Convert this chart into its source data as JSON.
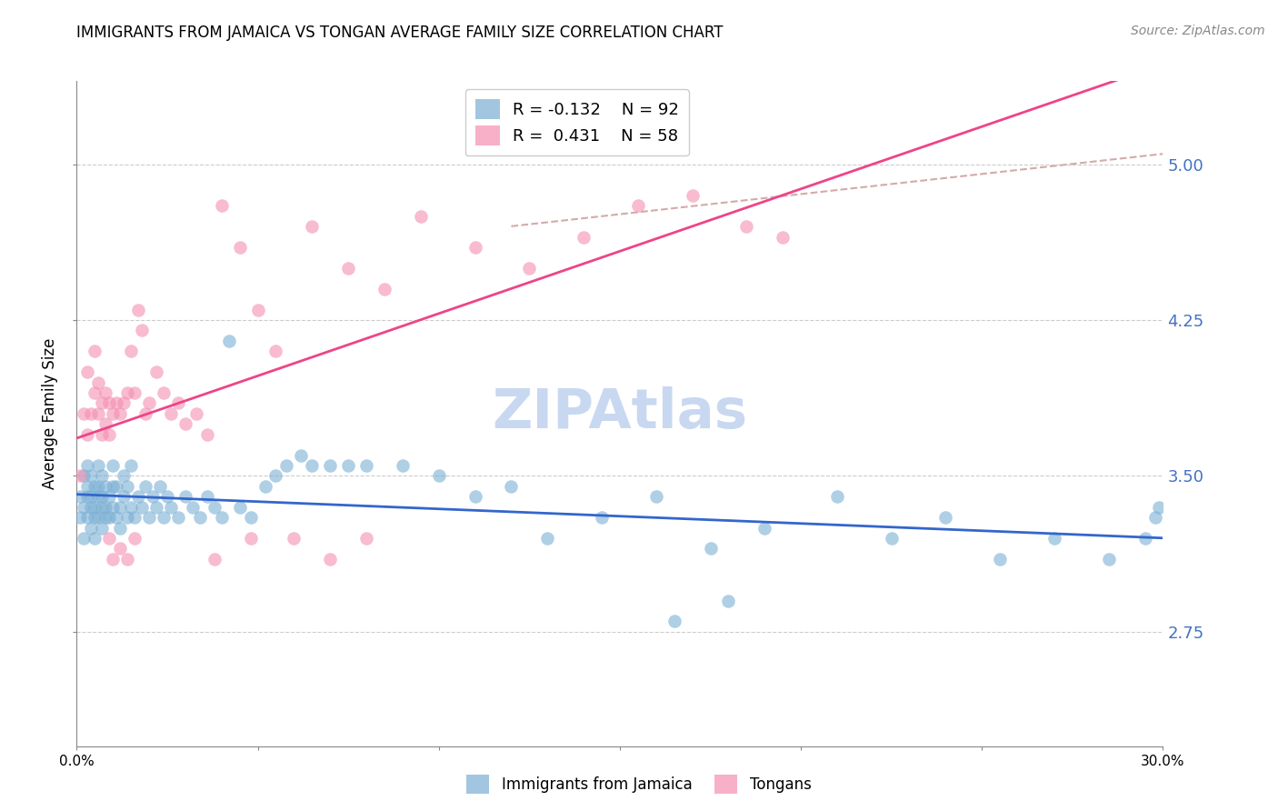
{
  "title": "IMMIGRANTS FROM JAMAICA VS TONGAN AVERAGE FAMILY SIZE CORRELATION CHART",
  "source": "Source: ZipAtlas.com",
  "ylabel": "Average Family Size",
  "xlim": [
    0.0,
    0.3
  ],
  "ylim": [
    2.2,
    5.4
  ],
  "yticks": [
    2.75,
    3.5,
    4.25,
    5.0
  ],
  "xticks": [
    0.0,
    0.05,
    0.1,
    0.15,
    0.2,
    0.25,
    0.3
  ],
  "xtick_labels": [
    "0.0%",
    "",
    "",
    "",
    "",
    "",
    "30.0%"
  ],
  "right_ytick_color": "#4472c4",
  "title_fontsize": 12,
  "source_fontsize": 10,
  "legend_R_jamaica": "-0.132",
  "legend_N_jamaica": "92",
  "legend_R_tongan": "0.431",
  "legend_N_tongan": "58",
  "color_jamaica": "#7bafd4",
  "color_tongan": "#f48fb1",
  "trendline_jamaica_color": "#3366cc",
  "trendline_tongan_color": "#ee4488",
  "trendline_dashed_color": "#d4aaaa",
  "background_color": "#ffffff",
  "watermark_text": "ZIPAtlas",
  "watermark_color": "#c8d8f0",
  "jamaica_x": [
    0.001,
    0.001,
    0.002,
    0.002,
    0.002,
    0.003,
    0.003,
    0.003,
    0.003,
    0.004,
    0.004,
    0.004,
    0.004,
    0.005,
    0.005,
    0.005,
    0.005,
    0.006,
    0.006,
    0.006,
    0.006,
    0.007,
    0.007,
    0.007,
    0.007,
    0.008,
    0.008,
    0.008,
    0.009,
    0.009,
    0.01,
    0.01,
    0.01,
    0.011,
    0.011,
    0.012,
    0.012,
    0.013,
    0.013,
    0.014,
    0.014,
    0.015,
    0.015,
    0.016,
    0.017,
    0.018,
    0.019,
    0.02,
    0.021,
    0.022,
    0.023,
    0.024,
    0.025,
    0.026,
    0.028,
    0.03,
    0.032,
    0.034,
    0.036,
    0.038,
    0.04,
    0.042,
    0.045,
    0.048,
    0.052,
    0.055,
    0.058,
    0.062,
    0.065,
    0.07,
    0.075,
    0.08,
    0.09,
    0.1,
    0.11,
    0.12,
    0.13,
    0.145,
    0.16,
    0.175,
    0.19,
    0.21,
    0.225,
    0.24,
    0.255,
    0.27,
    0.285,
    0.295,
    0.298,
    0.299,
    0.165,
    0.18
  ],
  "jamaica_y": [
    3.4,
    3.3,
    3.5,
    3.35,
    3.2,
    3.45,
    3.3,
    3.4,
    3.55,
    3.35,
    3.25,
    3.4,
    3.5,
    3.3,
    3.45,
    3.35,
    3.2,
    3.4,
    3.3,
    3.45,
    3.55,
    3.35,
    3.25,
    3.4,
    3.5,
    3.3,
    3.45,
    3.35,
    3.4,
    3.3,
    3.45,
    3.35,
    3.55,
    3.3,
    3.45,
    3.35,
    3.25,
    3.4,
    3.5,
    3.3,
    3.45,
    3.35,
    3.55,
    3.3,
    3.4,
    3.35,
    3.45,
    3.3,
    3.4,
    3.35,
    3.45,
    3.3,
    3.4,
    3.35,
    3.3,
    3.4,
    3.35,
    3.3,
    3.4,
    3.35,
    3.3,
    4.15,
    3.35,
    3.3,
    3.45,
    3.5,
    3.55,
    3.6,
    3.55,
    3.55,
    3.55,
    3.55,
    3.55,
    3.5,
    3.4,
    3.45,
    3.2,
    3.3,
    3.4,
    3.15,
    3.25,
    3.4,
    3.2,
    3.3,
    3.1,
    3.2,
    3.1,
    3.2,
    3.3,
    3.35,
    2.8,
    2.9
  ],
  "tongan_x": [
    0.001,
    0.002,
    0.003,
    0.003,
    0.004,
    0.005,
    0.005,
    0.006,
    0.006,
    0.007,
    0.007,
    0.008,
    0.008,
    0.009,
    0.009,
    0.01,
    0.011,
    0.012,
    0.013,
    0.014,
    0.015,
    0.016,
    0.017,
    0.018,
    0.019,
    0.02,
    0.022,
    0.024,
    0.026,
    0.028,
    0.03,
    0.033,
    0.036,
    0.04,
    0.045,
    0.05,
    0.055,
    0.065,
    0.075,
    0.085,
    0.095,
    0.11,
    0.125,
    0.14,
    0.155,
    0.17,
    0.185,
    0.195,
    0.048,
    0.038,
    0.009,
    0.01,
    0.012,
    0.014,
    0.016,
    0.06,
    0.07,
    0.08
  ],
  "tongan_y": [
    3.5,
    3.8,
    3.7,
    4.0,
    3.8,
    3.9,
    4.1,
    3.8,
    3.95,
    3.7,
    3.85,
    3.75,
    3.9,
    3.7,
    3.85,
    3.8,
    3.85,
    3.8,
    3.85,
    3.9,
    4.1,
    3.9,
    4.3,
    4.2,
    3.8,
    3.85,
    4.0,
    3.9,
    3.8,
    3.85,
    3.75,
    3.8,
    3.7,
    4.8,
    4.6,
    4.3,
    4.1,
    4.7,
    4.5,
    4.4,
    4.75,
    4.6,
    4.5,
    4.65,
    4.8,
    4.85,
    4.7,
    4.65,
    3.2,
    3.1,
    3.2,
    3.1,
    3.15,
    3.1,
    3.2,
    3.2,
    3.1,
    3.2
  ]
}
